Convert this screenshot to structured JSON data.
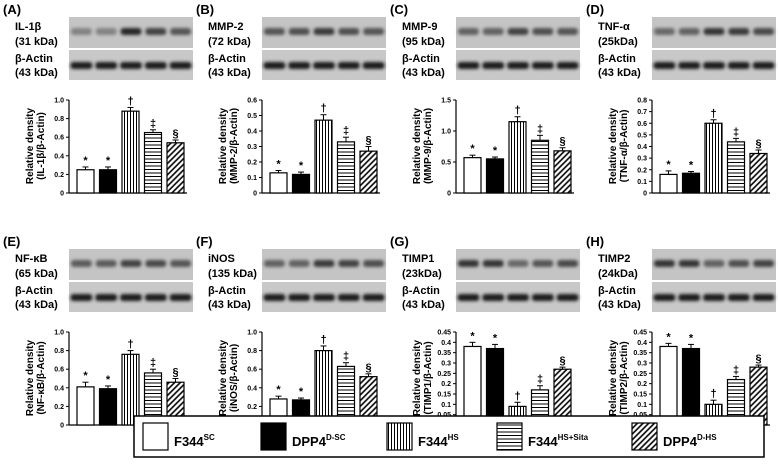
{
  "legend": [
    {
      "base": "F344",
      "sup": "SC",
      "pattern": "white"
    },
    {
      "base": "DPP4",
      "sup": "D-SC",
      "pattern": "black"
    },
    {
      "base": "F344",
      "sup": "HS",
      "pattern": "vstripe"
    },
    {
      "base": "F344",
      "sup": "HS+Sita",
      "pattern": "hstripe"
    },
    {
      "base": "DPP4",
      "sup": "D-HS",
      "pattern": "diag"
    }
  ],
  "chart_data": [
    {
      "type": "bar",
      "panel": "(A)",
      "protein": "IL-1β",
      "kda": "(31 kDa)",
      "actin": "β-Actin",
      "actin_kda": "(43 kDa)",
      "ylabel": [
        "Relative density",
        "(IL-1β/β-Actin)"
      ],
      "yticks": [
        "0",
        "0.2",
        "0.4",
        "0.6",
        "0.8",
        "1.0"
      ],
      "ylim": [
        0,
        1.0
      ],
      "values": [
        0.25,
        0.25,
        0.88,
        0.65,
        0.54
      ],
      "errors": [
        0.03,
        0.03,
        0.04,
        0.03,
        0.03
      ],
      "marks": [
        "*",
        "*",
        "†",
        "‡",
        "§"
      ],
      "blot": [
        0.15,
        0.15,
        0.85,
        0.65,
        0.5
      ]
    },
    {
      "type": "bar",
      "panel": "(B)",
      "protein": "MMP-2",
      "kda": "(72 kDa)",
      "actin": "β-Actin",
      "actin_kda": "(43 kDa)",
      "ylabel": [
        "Relative density",
        "(MMP-2/β-Actin)"
      ],
      "yticks": [
        "0",
        "0.1",
        "0.2",
        "0.3",
        "0.4",
        "0.5",
        "0.6"
      ],
      "ylim": [
        0,
        0.6
      ],
      "values": [
        0.13,
        0.12,
        0.47,
        0.33,
        0.27
      ],
      "errors": [
        0.015,
        0.015,
        0.035,
        0.03,
        0.03
      ],
      "marks": [
        "*",
        "*",
        "†",
        "‡",
        "§"
      ],
      "blot": [
        0.5,
        0.55,
        0.7,
        0.55,
        0.5
      ]
    },
    {
      "type": "bar",
      "panel": "(C)",
      "protein": "MMP-9",
      "kda": "(95 kDa)",
      "actin": "β-Actin",
      "actin_kda": "(43 kDa)",
      "ylabel": [
        "Relative density",
        "(MMP-9/β-Actin)"
      ],
      "yticks": [
        "0",
        "0.5",
        "1.0",
        "1.5"
      ],
      "ylim": [
        0,
        1.5
      ],
      "values": [
        0.57,
        0.55,
        1.15,
        0.85,
        0.68
      ],
      "errors": [
        0.04,
        0.03,
        0.08,
        0.08,
        0.05
      ],
      "marks": [
        "*",
        "*",
        "†",
        "‡",
        "§"
      ],
      "blot": [
        0.4,
        0.4,
        0.65,
        0.55,
        0.5
      ]
    },
    {
      "type": "bar",
      "panel": "(D)",
      "protein": "TNF-α",
      "kda": "(25kDa)",
      "actin": "β-Actin",
      "actin_kda": "(43 kDa)",
      "ylabel": [
        "Relative density",
        "(TNF-α/β-Actin)"
      ],
      "yticks": [
        "0",
        "0.1",
        "0.2",
        "0.3",
        "0.4",
        "0.5",
        "0.6",
        "0.7",
        "0.8"
      ],
      "ylim": [
        0,
        0.8
      ],
      "values": [
        0.16,
        0.17,
        0.6,
        0.44,
        0.34
      ],
      "errors": [
        0.03,
        0.015,
        0.03,
        0.03,
        0.03
      ],
      "marks": [
        "*",
        "*",
        "†",
        "‡",
        "§"
      ],
      "blot": [
        0.35,
        0.4,
        0.75,
        0.7,
        0.6
      ]
    },
    {
      "type": "bar",
      "panel": "(E)",
      "protein": "NF-κB",
      "kda": "(65 kDa)",
      "actin": "β-Actin",
      "actin_kda": "(43 kDa)",
      "ylabel": [
        "Relative density",
        "(NF-κB/β-Actin)"
      ],
      "yticks": [
        "0",
        "0.2",
        "0.4",
        "0.6",
        "0.8",
        "1.0"
      ],
      "ylim": [
        0,
        1.0
      ],
      "values": [
        0.41,
        0.39,
        0.76,
        0.56,
        0.46
      ],
      "errors": [
        0.05,
        0.03,
        0.04,
        0.04,
        0.04
      ],
      "marks": [
        "*",
        "*",
        "†",
        "‡",
        "§"
      ],
      "blot": [
        0.45,
        0.45,
        0.65,
        0.6,
        0.5
      ]
    },
    {
      "type": "bar",
      "panel": "(F)",
      "protein": "iNOS",
      "kda": "(135 kDa)",
      "actin": "β-Actin",
      "actin_kda": "(43 kDa)",
      "ylabel": [
        "Relative density",
        "(iNOS/β-Actin)"
      ],
      "yticks": [
        "0",
        "0.2",
        "0.4",
        "0.6",
        "0.8",
        "1.0"
      ],
      "ylim": [
        0,
        1.0
      ],
      "values": [
        0.28,
        0.27,
        0.8,
        0.63,
        0.52
      ],
      "errors": [
        0.03,
        0.02,
        0.05,
        0.04,
        0.03
      ],
      "marks": [
        "*",
        "*",
        "†",
        "‡",
        "§"
      ],
      "blot": [
        0.4,
        0.4,
        0.7,
        0.65,
        0.55
      ]
    },
    {
      "type": "bar",
      "panel": "(G)",
      "protein": "TIMP1",
      "kda": "(23kDa)",
      "actin": "β-Actin",
      "actin_kda": "(43 kDa)",
      "ylabel": [
        "Relative density",
        "(TIMP1/β-Actin)"
      ],
      "yticks": [
        "0",
        "0.05",
        "0.1",
        "0.15",
        "0.2",
        "0.25",
        "0.3",
        "0.35",
        "0.4",
        "0.45"
      ],
      "ylim": [
        0,
        0.45
      ],
      "values": [
        0.38,
        0.37,
        0.09,
        0.17,
        0.27
      ],
      "errors": [
        0.02,
        0.02,
        0.02,
        0.02,
        0.01
      ],
      "marks": [
        "*",
        "*",
        "†",
        "‡",
        "§"
      ],
      "blot": [
        0.75,
        0.75,
        0.35,
        0.5,
        0.6
      ]
    },
    {
      "type": "bar",
      "panel": "(H)",
      "protein": "TIMP2",
      "kda": "(24kDa)",
      "actin": "β-Actin",
      "actin_kda": "(43 kDa)",
      "ylabel": [
        "Relative density",
        "(TIMP2/β-Actin)"
      ],
      "yticks": [
        "0",
        "0.05",
        "0.1",
        "0.15",
        "0.2",
        "0.25",
        "0.3",
        "0.35",
        "0.4",
        "0.45"
      ],
      "ylim": [
        0,
        0.45
      ],
      "values": [
        0.38,
        0.37,
        0.1,
        0.22,
        0.28
      ],
      "errors": [
        0.015,
        0.02,
        0.02,
        0.015,
        0.01
      ],
      "marks": [
        "*",
        "*",
        "†",
        "‡",
        "§"
      ],
      "blot": [
        0.75,
        0.75,
        0.4,
        0.55,
        0.65
      ]
    }
  ]
}
